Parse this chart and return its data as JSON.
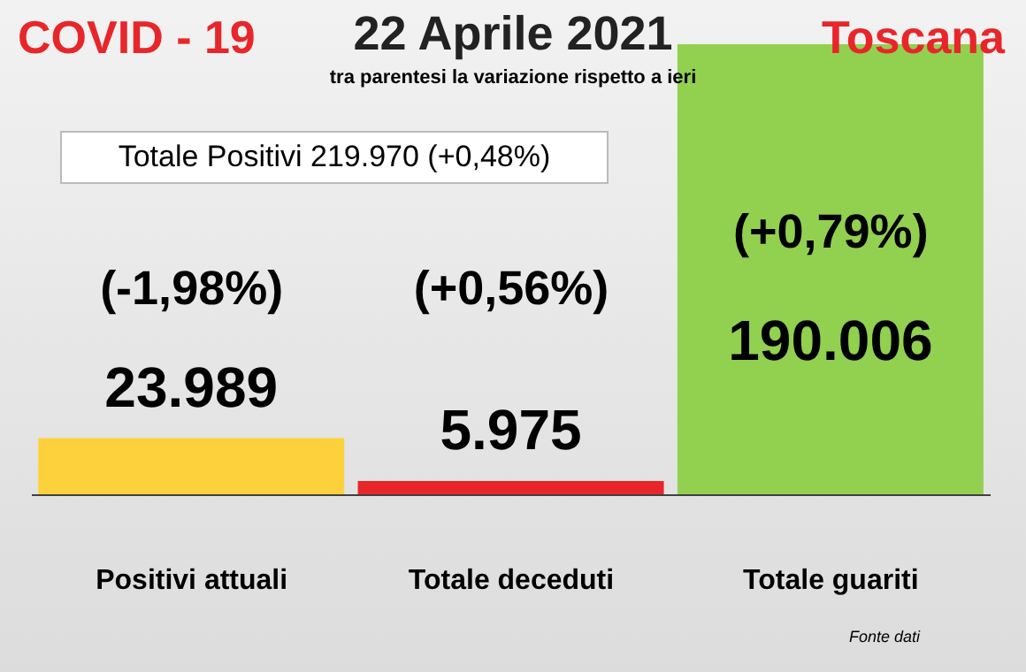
{
  "chart_data": {
    "type": "bar",
    "title": "22 Aprile 2021",
    "subtitle": "tra parentesi la variazione rispetto a ieri",
    "categories": [
      "Positivi attuali",
      "Totale deceduti",
      "Totale guariti"
    ],
    "values": [
      23989,
      5975,
      190006
    ],
    "colors": [
      "#fdd13b",
      "#e8262a",
      "#92d050"
    ],
    "value_labels": [
      "23.989",
      "5.975",
      "190.006"
    ],
    "annotations": [
      "COVID - 19",
      "Toscana",
      "Totale Positivi   219.970  (+0,48%)",
      "Fonte dati",
      "(-1,98%)",
      "(+0,56%)",
      "(+0,79%)"
    ]
  }
}
